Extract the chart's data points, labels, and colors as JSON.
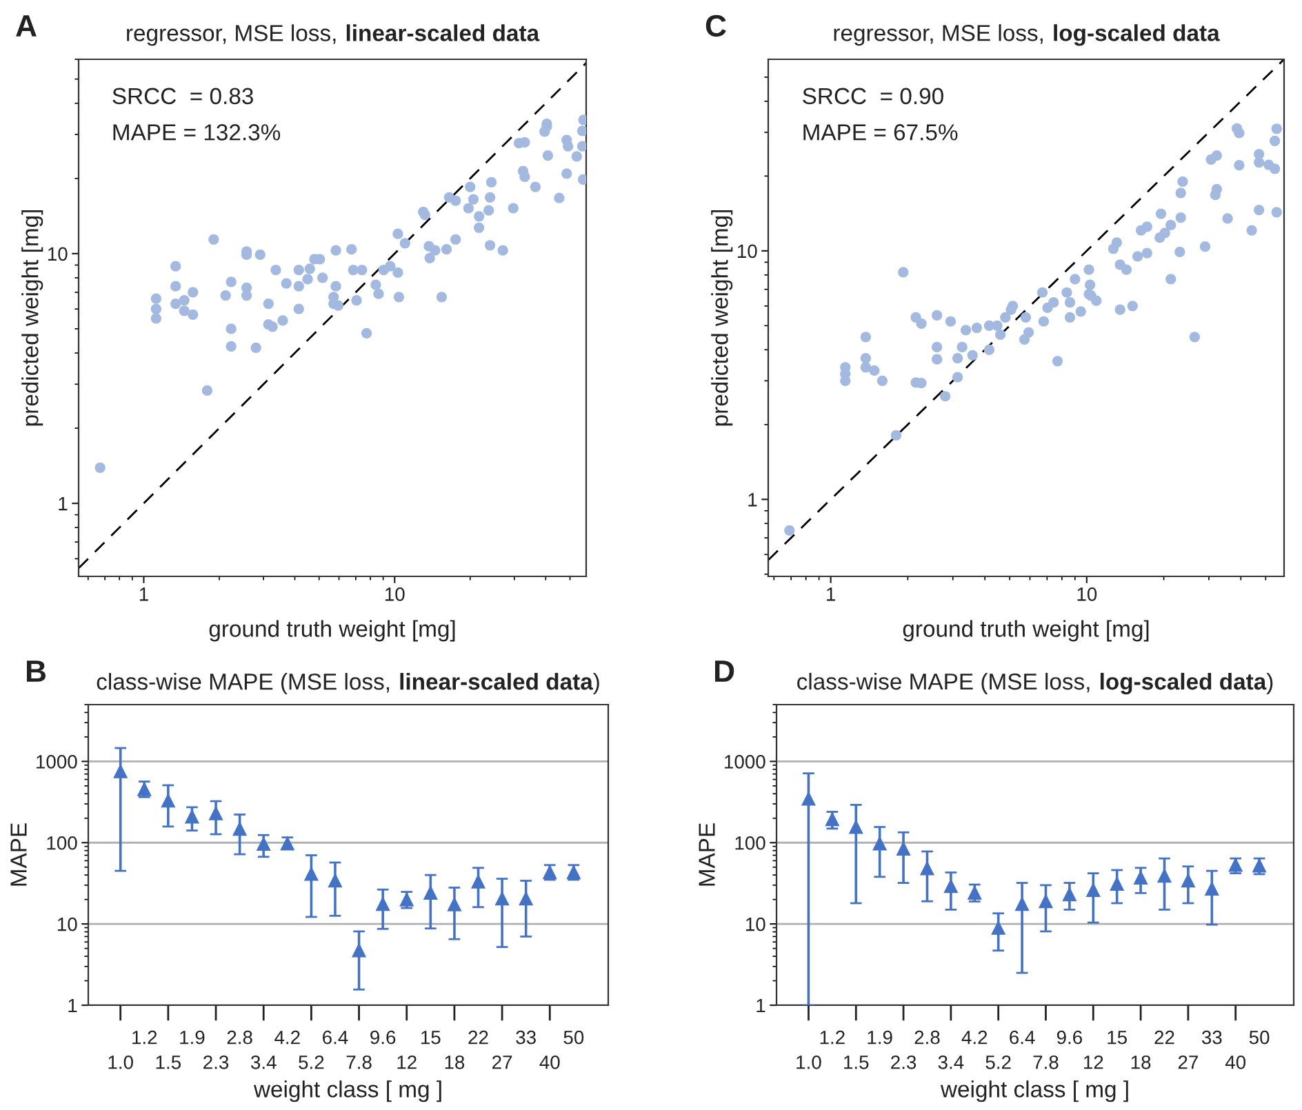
{
  "chart_data": [
    {
      "type": "scatter",
      "title": "regressor, MSE loss, linear-scaled data",
      "xlabel": "ground truth weight [mg]",
      "ylabel": "predicted weight [mg]",
      "annotations": [
        "A",
        "SRCC  = 0.83",
        "MAPE = 132.3%"
      ],
      "xlim": [
        0.55,
        58
      ],
      "ylim": [
        0.51,
        60
      ],
      "xticks": [
        1,
        10
      ],
      "yticks": [
        1,
        10
      ],
      "log": "xy",
      "series": [
        {
          "color": "#a3b9e0",
          "marker": "circle",
          "x": [
            0.67,
            1.9,
            1.79,
            1.12,
            1.12,
            1.12,
            1.34,
            1.34,
            1.34,
            1.45,
            1.45,
            1.57,
            1.57,
            2.12,
            2.23,
            2.23,
            2.23,
            2.57,
            2.57,
            2.57,
            2.57,
            2.91,
            2.8,
            3.14,
            3.14,
            3.26,
            3.36,
            3.58,
            3.7,
            4.15,
            4.15,
            4.15,
            4.5,
            4.59,
            4.79,
            5.03,
            5.16,
            5.83,
            5.83,
            5.71,
            5.71,
            5.96,
            6.73,
            6.84,
            7.41,
            7.05,
            7.73,
            8.41,
            8.63,
            9.04,
            9.6,
            10.3,
            10.3,
            10.4,
            11.0,
            13.0,
            13.2,
            13.7,
            13.8,
            14.5,
            15.4,
            16.1,
            16.5,
            17.5,
            17.5,
            19.7,
            20.0,
            20.6,
            21.7,
            21.7,
            23.7,
            24.0,
            24.3,
            24.0,
            27.0,
            29.7,
            31.3,
            33.0,
            32.5,
            33.0,
            36.4,
            40.4,
            40.4,
            39.6,
            40.8,
            45.3,
            48.5,
            49.1,
            48.5,
            53.2,
            56.0,
            56.0,
            56.4,
            56.6
          ],
          "values": [
            1.39,
            11.4,
            2.83,
            6.6,
            6.0,
            5.5,
            8.9,
            7.4,
            6.3,
            6.5,
            5.9,
            7.0,
            5.7,
            6.8,
            7.7,
            5.0,
            4.25,
            10.2,
            9.9,
            7.3,
            6.8,
            9.9,
            4.2,
            6.3,
            5.2,
            5.1,
            8.6,
            5.4,
            7.6,
            8.6,
            7.4,
            6.0,
            7.9,
            8.7,
            9.5,
            9.5,
            8.0,
            10.3,
            7.4,
            6.7,
            6.3,
            6.2,
            10.4,
            8.6,
            8.6,
            6.5,
            4.8,
            7.5,
            6.9,
            8.6,
            8.9,
            12.0,
            8.4,
            6.7,
            11.0,
            14.7,
            14.3,
            10.7,
            9.6,
            10.3,
            6.7,
            10.4,
            16.8,
            16.3,
            11.4,
            15.2,
            18.5,
            16.5,
            14.1,
            12.7,
            14.9,
            16.8,
            19.3,
            10.8,
            10.3,
            15.2,
            27.7,
            27.9,
            21.4,
            20.3,
            18.5,
            33.1,
            32.3,
            30.8,
            24.7,
            16.7,
            28.5,
            26.9,
            20.9,
            24.5,
            31.0,
            26.9,
            19.8,
            34.3
          ]
        },
        {
          "type": "line",
          "color": "#000000",
          "line_style": "dashed",
          "marker": "none",
          "x": [
            0.55,
            58
          ],
          "values": [
            0.55,
            58
          ]
        }
      ]
    },
    {
      "type": "scatter",
      "title": "class-wise MAPE (MSE loss, linear-scaled data)",
      "xlabel": "weight class [ mg ]",
      "ylabel": "MAPE",
      "annotations": [
        "B"
      ],
      "categories": [
        "1.0",
        "1.2",
        "1.5",
        "1.9",
        "2.3",
        "2.8",
        "3.4",
        "4.2",
        "5.2",
        "6.4",
        "7.8",
        "9.6",
        "12",
        "15",
        "18",
        "22",
        "27",
        "33",
        "40",
        "50"
      ],
      "ylim": [
        1,
        5000
      ],
      "yticks": [
        1,
        10,
        100,
        1000
      ],
      "log": "y",
      "grid": "y",
      "series": [
        {
          "color": "#4472c4",
          "marker": "triangle",
          "values": [
            750,
            453,
            327,
            208,
            228,
            147,
            96,
            97,
            41,
            34,
            4.7,
            17.5,
            19.9,
            24,
            17.3,
            33,
            20.4,
            20.4,
            43,
            43
          ],
          "errors": [
            [
              45,
              1460
            ],
            [
              364,
              565
            ],
            [
              158,
              509
            ],
            [
              141,
              273
            ],
            [
              127,
              324
            ],
            [
              72,
              222
            ],
            [
              67,
              124
            ],
            [
              85,
              116
            ],
            [
              12.2,
              70
            ],
            [
              12.6,
              57
            ],
            [
              1.56,
              8.1
            ],
            [
              8.7,
              26.5
            ],
            [
              15.7,
              24.8
            ],
            [
              8.8,
              40
            ],
            [
              6.5,
              28
            ],
            [
              16.1,
              49
            ],
            [
              5.2,
              36
            ],
            [
              7.0,
              34
            ],
            [
              35,
              53
            ],
            [
              35,
              53
            ]
          ]
        }
      ]
    },
    {
      "type": "scatter",
      "title": "regressor, MSE loss, log-scaled data",
      "xlabel": "ground truth weight [mg]",
      "ylabel": "predicted weight [mg]",
      "annotations": [
        "C",
        "SRCC  = 0.90",
        "MAPE = 67.5%"
      ],
      "xlim": [
        0.57,
        59
      ],
      "ylim": [
        0.49,
        59
      ],
      "xticks": [
        1,
        10
      ],
      "yticks": [
        1,
        10
      ],
      "log": "xy",
      "series": [
        {
          "color": "#a3b9e0",
          "marker": "circle",
          "x": [
            0.69,
            1.8,
            1.92,
            1.14,
            1.14,
            1.14,
            1.37,
            1.37,
            1.37,
            1.48,
            1.59,
            2.15,
            2.26,
            2.15,
            2.26,
            2.6,
            2.6,
            2.6,
            2.8,
            2.94,
            3.13,
            3.13,
            3.26,
            3.37,
            3.58,
            3.72,
            4.16,
            4.16,
            4.47,
            4.6,
            4.81,
            5.06,
            5.14,
            5.78,
            5.71,
            5.93,
            6.71,
            6.79,
            7.03,
            7.42,
            7.69,
            8.36,
            8.6,
            8.6,
            9.0,
            9.48,
            10.2,
            10.3,
            10.2,
            10.4,
            10.9,
            12.7,
            13.1,
            13.5,
            13.5,
            14.3,
            15.1,
            15.8,
            16.3,
            17.2,
            17.2,
            19.3,
            19.5,
            20.2,
            21.3,
            21.3,
            23.1,
            23.3,
            23.3,
            23.7,
            26.4,
            29.0,
            30.6,
            32.2,
            31.8,
            32.2,
            35.5,
            38.6,
            39.4,
            39.4,
            44.1,
            47.1,
            47.1,
            47.1,
            51.4,
            54.3,
            54.3,
            55.2,
            55.2
          ],
          "values": [
            0.75,
            1.81,
            8.2,
            3.4,
            3.2,
            3.0,
            4.5,
            3.7,
            3.4,
            3.3,
            3.0,
            5.4,
            5.1,
            2.95,
            2.94,
            5.5,
            4.1,
            3.66,
            2.6,
            5.2,
            3.7,
            3.1,
            4.1,
            4.8,
            3.8,
            4.9,
            5.0,
            4.0,
            5.0,
            4.6,
            5.4,
            5.8,
            6.0,
            5.4,
            4.4,
            4.7,
            6.8,
            5.2,
            5.9,
            6.2,
            3.6,
            6.8,
            6.2,
            5.4,
            7.7,
            5.7,
            8.4,
            7.3,
            6.7,
            6.6,
            6.3,
            10.2,
            10.8,
            8.8,
            5.8,
            8.4,
            6.0,
            9.5,
            12.1,
            12.5,
            9.8,
            11.3,
            14.1,
            11.8,
            12.7,
            7.7,
            9.9,
            13.6,
            17.1,
            19.0,
            4.5,
            10.4,
            23.3,
            24.2,
            16.8,
            17.7,
            13.5,
            31.1,
            29.8,
            22.1,
            12.1,
            24.5,
            22.7,
            14.6,
            22.2,
            27.7,
            21.4,
            31.0,
            14.3
          ]
        },
        {
          "type": "line",
          "color": "#000000",
          "line_style": "dashed",
          "marker": "none",
          "x": [
            0.57,
            59
          ],
          "values": [
            0.57,
            59
          ]
        }
      ]
    },
    {
      "type": "scatter",
      "title": "class-wise MAPE (MSE loss, log-scaled data)",
      "xlabel": "weight class [ mg ]",
      "ylabel": "MAPE",
      "annotations": [
        "D"
      ],
      "categories": [
        "1.0",
        "1.2",
        "1.5",
        "1.9",
        "2.3",
        "2.8",
        "3.4",
        "4.2",
        "5.2",
        "6.4",
        "7.8",
        "9.6",
        "12",
        "15",
        "18",
        "22",
        "27",
        "33",
        "40",
        "50"
      ],
      "ylim": [
        1,
        5000
      ],
      "yticks": [
        1,
        10,
        100,
        1000
      ],
      "log": "y",
      "grid": "y",
      "series": [
        {
          "color": "#4472c4",
          "marker": "triangle",
          "values": [
            345,
            193,
            155,
            97,
            84,
            48,
            29,
            24,
            8.9,
            17.5,
            18.9,
            23,
            26,
            31,
            37,
            39,
            34,
            27,
            53,
            52
          ],
          "errors": [
            [
              1,
              713
            ],
            [
              149,
              240
            ],
            [
              18,
              292
            ],
            [
              38,
              156
            ],
            [
              32,
              134
            ],
            [
              19,
              78
            ],
            [
              15,
              43
            ],
            [
              18.9,
              30.5
            ],
            [
              4.7,
              13.5
            ],
            [
              2.5,
              32
            ],
            [
              8.1,
              30
            ],
            [
              15,
              32
            ],
            [
              10.4,
              42
            ],
            [
              18,
              46
            ],
            [
              24,
              49
            ],
            [
              15,
              64
            ],
            [
              18,
              51
            ],
            [
              9.8,
              45
            ],
            [
              42,
              64
            ],
            [
              41,
              64
            ]
          ]
        }
      ]
    }
  ]
}
